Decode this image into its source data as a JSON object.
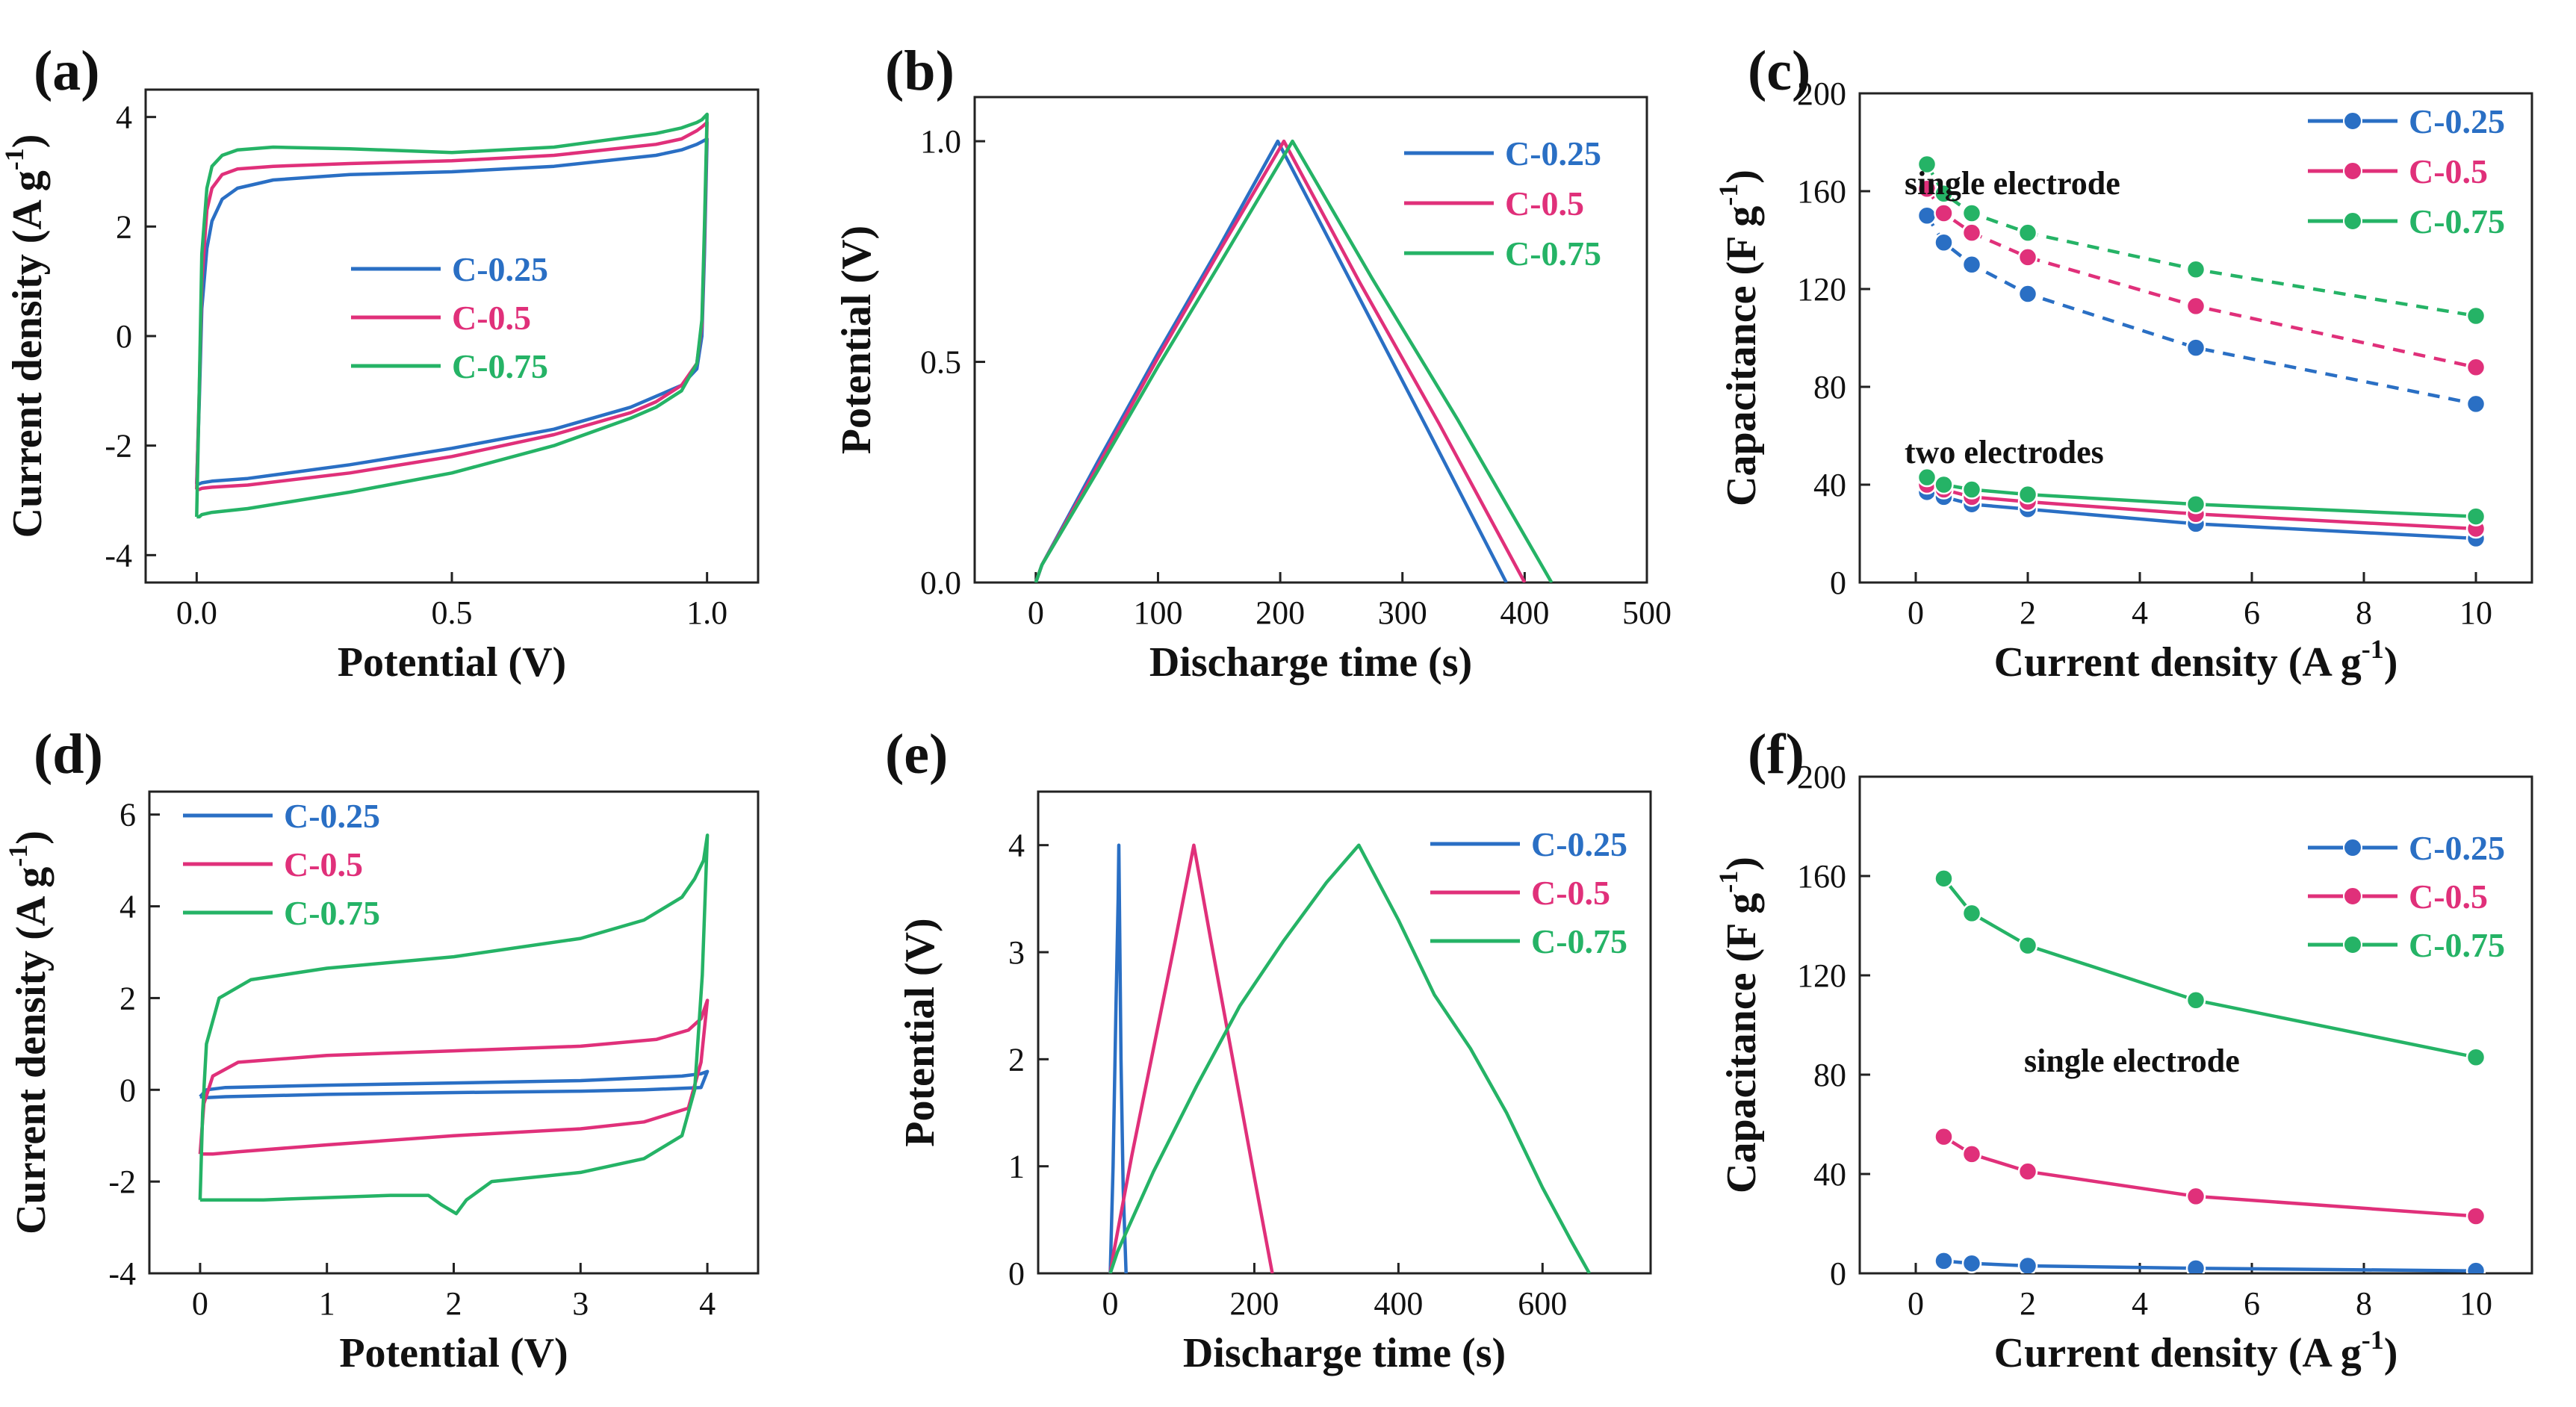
{
  "colors": {
    "C-0.25": "#2a6fc4",
    "C-0.5": "#e0307a",
    "C-0.75": "#25b366"
  },
  "chart_data": [
    {
      "panel": "(a)",
      "type": "line",
      "xlabel": "Potential (V)",
      "ylabel": "Current density (A g",
      "ylabel_sup": "-1",
      "ylabel_end": ")",
      "xlim": [
        -0.1,
        1.1
      ],
      "ylim": [
        -4.5,
        4.5
      ],
      "xticks": [
        "0.0",
        "0.5",
        "1.0"
      ],
      "yticks": [
        "-4",
        "-2",
        "0",
        "2",
        "4"
      ],
      "legend": [
        "C-0.25",
        "C-0.5",
        "C-0.75"
      ],
      "series": [
        {
          "name": "C-0.25",
          "x": [
            0.0,
            0.005,
            0.01,
            0.02,
            0.03,
            0.05,
            0.08,
            0.15,
            0.3,
            0.5,
            0.7,
            0.9,
            0.95,
            0.98,
            0.99,
            1.0,
            0.995,
            0.99,
            0.98,
            0.95,
            0.9,
            0.85,
            0.7,
            0.5,
            0.3,
            0.1,
            0.03,
            0.01,
            0.005,
            0.0
          ],
          "y": [
            -2.7,
            -1.2,
            0.5,
            1.6,
            2.1,
            2.5,
            2.7,
            2.85,
            2.95,
            3.0,
            3.1,
            3.3,
            3.4,
            3.5,
            3.55,
            3.6,
            1.5,
            0.0,
            -0.6,
            -0.9,
            -1.1,
            -1.3,
            -1.7,
            -2.05,
            -2.35,
            -2.6,
            -2.65,
            -2.68,
            -2.7,
            -2.7
          ]
        },
        {
          "name": "C-0.5",
          "x": [
            0.0,
            0.005,
            0.01,
            0.02,
            0.03,
            0.05,
            0.08,
            0.15,
            0.3,
            0.5,
            0.7,
            0.9,
            0.95,
            0.98,
            0.99,
            1.0,
            0.995,
            0.99,
            0.98,
            0.95,
            0.9,
            0.85,
            0.7,
            0.5,
            0.3,
            0.1,
            0.03,
            0.01,
            0.005,
            0.0
          ],
          "y": [
            -2.8,
            -1.0,
            1.0,
            2.3,
            2.7,
            2.95,
            3.05,
            3.1,
            3.15,
            3.2,
            3.3,
            3.5,
            3.6,
            3.75,
            3.82,
            3.9,
            1.8,
            0.2,
            -0.5,
            -0.9,
            -1.2,
            -1.4,
            -1.8,
            -2.2,
            -2.5,
            -2.72,
            -2.76,
            -2.78,
            -2.8,
            -2.8
          ]
        },
        {
          "name": "C-0.75",
          "x": [
            0.0,
            0.005,
            0.01,
            0.02,
            0.03,
            0.05,
            0.08,
            0.15,
            0.3,
            0.5,
            0.7,
            0.9,
            0.95,
            0.98,
            0.99,
            1.0,
            0.995,
            0.99,
            0.98,
            0.95,
            0.9,
            0.85,
            0.7,
            0.5,
            0.3,
            0.1,
            0.03,
            0.01,
            0.005,
            0.0
          ],
          "y": [
            -3.3,
            -1.0,
            1.5,
            2.7,
            3.1,
            3.3,
            3.4,
            3.45,
            3.42,
            3.35,
            3.45,
            3.7,
            3.8,
            3.9,
            3.95,
            4.05,
            2.0,
            0.3,
            -0.5,
            -1.0,
            -1.3,
            -1.5,
            -2.0,
            -2.5,
            -2.85,
            -3.15,
            -3.22,
            -3.26,
            -3.3,
            -3.3
          ]
        }
      ]
    },
    {
      "panel": "(b)",
      "type": "line",
      "xlabel": "Discharge time (s)",
      "ylabel": "Potential (V)",
      "xlim": [
        -50,
        500
      ],
      "ylim": [
        0,
        1.1
      ],
      "xticks": [
        "0",
        "100",
        "200",
        "300",
        "400",
        "500"
      ],
      "yticks": [
        "0.0",
        "0.5",
        "1.0"
      ],
      "legend": [
        "C-0.25",
        "C-0.5",
        "C-0.75"
      ],
      "series": [
        {
          "name": "C-0.25",
          "x": [
            0,
            5,
            50,
            100,
            150,
            198,
            260,
            320,
            385
          ],
          "y": [
            0,
            0.04,
            0.27,
            0.52,
            0.76,
            1.0,
            0.67,
            0.35,
            0
          ]
        },
        {
          "name": "C-0.5",
          "x": [
            0,
            5,
            50,
            100,
            150,
            203,
            265,
            330,
            400
          ],
          "y": [
            0,
            0.04,
            0.26,
            0.51,
            0.75,
            1.0,
            0.68,
            0.36,
            0
          ]
        },
        {
          "name": "C-0.75",
          "x": [
            0,
            5,
            50,
            100,
            150,
            210,
            275,
            345,
            422
          ],
          "y": [
            0,
            0.04,
            0.25,
            0.49,
            0.72,
            1.0,
            0.69,
            0.37,
            0
          ]
        }
      ]
    },
    {
      "panel": "(c)",
      "type": "line",
      "xlabel": "Current density (A g",
      "xlabel_sup": "-1",
      "xlabel_end": ")",
      "ylabel": "Capacitance (F g",
      "ylabel_sup": "-1",
      "ylabel_end": ")",
      "xlim": [
        -1,
        11
      ],
      "ylim": [
        0,
        200
      ],
      "xticks": [
        "0",
        "2",
        "4",
        "6",
        "8",
        "10"
      ],
      "yticks": [
        "0",
        "40",
        "80",
        "120",
        "160",
        "200"
      ],
      "legend": [
        "C-0.25",
        "C-0.5",
        "C-0.75"
      ],
      "annotations": [
        "single electrode",
        "two electrodes"
      ],
      "x": [
        0.2,
        0.5,
        1,
        2,
        5,
        10
      ],
      "series": [
        {
          "name": "C-0.25",
          "group": "single electrode",
          "values": [
            150,
            139,
            130,
            118,
            96,
            73
          ]
        },
        {
          "name": "C-0.5",
          "group": "single electrode",
          "values": [
            161,
            151,
            143,
            133,
            113,
            88
          ]
        },
        {
          "name": "C-0.75",
          "group": "single electrode",
          "values": [
            171,
            159,
            151,
            143,
            128,
            109
          ]
        },
        {
          "name": "C-0.25",
          "group": "two electrodes",
          "values": [
            37,
            35,
            32,
            30,
            24,
            18
          ]
        },
        {
          "name": "C-0.5",
          "group": "two electrodes",
          "values": [
            40,
            38,
            35,
            33,
            28,
            22
          ]
        },
        {
          "name": "C-0.75",
          "group": "two electrodes",
          "values": [
            43,
            40,
            38,
            36,
            32,
            27
          ]
        }
      ]
    },
    {
      "panel": "(d)",
      "type": "line",
      "xlabel": "Potential (V)",
      "ylabel": "Current density (A g",
      "ylabel_sup": "-1",
      "ylabel_end": ")",
      "xlim": [
        -0.4,
        4.4
      ],
      "ylim": [
        -4,
        6.5
      ],
      "xticks": [
        "0",
        "1",
        "2",
        "3",
        "4"
      ],
      "yticks": [
        "-4",
        "-2",
        "0",
        "2",
        "4",
        "6"
      ],
      "legend": [
        "C-0.25",
        "C-0.5",
        "C-0.75"
      ],
      "series": [
        {
          "name": "C-0.25",
          "x": [
            0,
            0.05,
            0.2,
            1,
            2,
            3,
            3.8,
            3.95,
            4.0,
            3.95,
            3.5,
            3,
            2,
            1,
            0.2,
            0.05,
            0
          ],
          "y": [
            -0.15,
            0.0,
            0.05,
            0.1,
            0.15,
            0.2,
            0.3,
            0.35,
            0.4,
            0.05,
            0.0,
            -0.03,
            -0.06,
            -0.1,
            -0.15,
            -0.17,
            -0.15
          ]
        },
        {
          "name": "C-0.5",
          "x": [
            0,
            0.03,
            0.1,
            0.3,
            1,
            2,
            3,
            3.6,
            3.85,
            3.95,
            4.0,
            3.95,
            3.85,
            3.5,
            3,
            2,
            1,
            0.3,
            0.1,
            0.03,
            0
          ],
          "y": [
            -1.4,
            -0.3,
            0.3,
            0.6,
            0.75,
            0.85,
            0.95,
            1.1,
            1.3,
            1.55,
            1.95,
            0.6,
            -0.4,
            -0.7,
            -0.85,
            -1.0,
            -1.2,
            -1.35,
            -1.4,
            -1.4,
            -1.4
          ]
        },
        {
          "name": "C-0.75",
          "x": [
            0,
            0.02,
            0.05,
            0.15,
            0.4,
            1,
            2,
            3,
            3.5,
            3.8,
            3.9,
            3.97,
            4.0,
            3.96,
            3.9,
            3.8,
            3.5,
            3,
            2.3,
            2.1,
            2.02,
            1.9,
            1.8,
            1.5,
            1,
            0.5,
            0.1,
            0.03,
            0
          ],
          "y": [
            -2.4,
            -0.5,
            1.0,
            2.0,
            2.4,
            2.65,
            2.9,
            3.3,
            3.7,
            4.2,
            4.6,
            5.0,
            5.55,
            2.5,
            0.0,
            -1.0,
            -1.5,
            -1.8,
            -2.0,
            -2.4,
            -2.7,
            -2.5,
            -2.3,
            -2.3,
            -2.35,
            -2.4,
            -2.4,
            -2.4,
            -2.4
          ]
        }
      ]
    },
    {
      "panel": "(e)",
      "type": "line",
      "xlabel": "Discharge time (s)",
      "ylabel": "Potential (V)",
      "xlim": [
        -100,
        750
      ],
      "ylim": [
        0,
        4.5
      ],
      "xticks": [
        "0",
        "200",
        "400",
        "600"
      ],
      "yticks": [
        "0",
        "1",
        "2",
        "3",
        "4"
      ],
      "legend": [
        "C-0.25",
        "C-0.5",
        "C-0.75"
      ],
      "series": [
        {
          "name": "C-0.25",
          "x": [
            0,
            4,
            8,
            11,
            12,
            15,
            18,
            22
          ],
          "y": [
            0,
            1.0,
            2.5,
            3.5,
            4.0,
            2.0,
            0.8,
            0
          ]
        },
        {
          "name": "C-0.5",
          "x": [
            0,
            5,
            30,
            60,
            90,
            116,
            140,
            170,
            200,
            225
          ],
          "y": [
            0,
            0.2,
            1.1,
            2.1,
            3.1,
            4.0,
            3.1,
            2.0,
            0.9,
            0
          ]
        },
        {
          "name": "C-0.75",
          "x": [
            0,
            10,
            60,
            120,
            180,
            240,
            300,
            345,
            400,
            450,
            500,
            550,
            600,
            640,
            665
          ],
          "y": [
            0,
            0.2,
            0.95,
            1.75,
            2.5,
            3.1,
            3.65,
            4.0,
            3.3,
            2.6,
            2.1,
            1.5,
            0.8,
            0.3,
            0
          ]
        }
      ]
    },
    {
      "panel": "(f)",
      "type": "line",
      "xlabel": "Current density (A g",
      "xlabel_sup": "-1",
      "xlabel_end": ")",
      "ylabel": "Capacitance (F g",
      "ylabel_sup": "-1",
      "ylabel_end": ")",
      "xlim": [
        -1,
        11
      ],
      "ylim": [
        0,
        200
      ],
      "xticks": [
        "0",
        "2",
        "4",
        "6",
        "8",
        "10"
      ],
      "yticks": [
        "0",
        "40",
        "80",
        "120",
        "160",
        "200"
      ],
      "legend": [
        "C-0.25",
        "C-0.5",
        "C-0.75"
      ],
      "annotations": [
        "single electrode"
      ],
      "x": [
        0.5,
        1,
        2,
        5,
        10
      ],
      "series": [
        {
          "name": "C-0.25",
          "values": [
            5,
            4,
            3,
            2,
            1
          ]
        },
        {
          "name": "C-0.5",
          "values": [
            55,
            48,
            41,
            31,
            23
          ]
        },
        {
          "name": "C-0.75",
          "values": [
            159,
            145,
            132,
            110,
            87
          ]
        }
      ]
    }
  ]
}
